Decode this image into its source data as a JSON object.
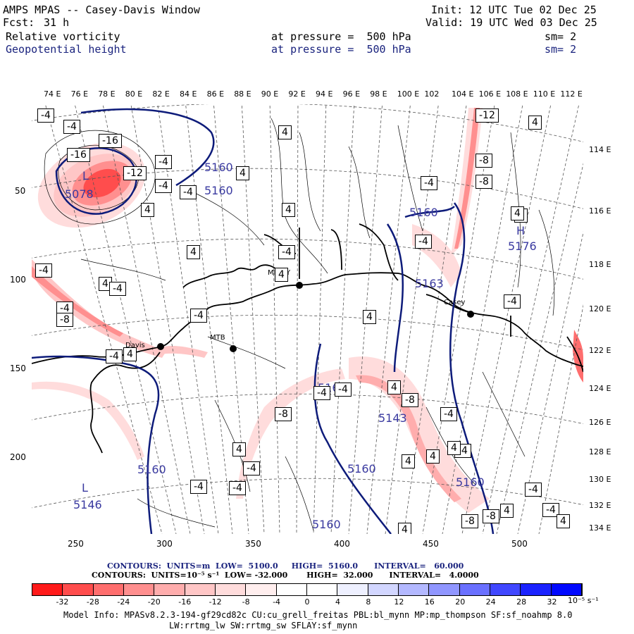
{
  "header": {
    "title": "AMPS MPAS -- Casey-Davis Window",
    "fcst_label": "Fcst:",
    "fcst_value": "31 h",
    "init": "Init: 12 UTC Tue 02 Dec 25",
    "valid": "Valid: 19 UTC Wed 03 Dec 25",
    "field1_name": "Relative vorticity",
    "field1_level": "at pressure =  500 hPa",
    "field1_sm": "sm= 2",
    "field2_name": "Geopotential height",
    "field2_level": "at pressure =  500 hPa",
    "field2_sm": "sm= 2",
    "colors": {
      "text": "#000000",
      "field2": "#1a237e"
    }
  },
  "axes": {
    "top_lon": [
      "74 E",
      "76 E",
      "78 E",
      "80 E",
      "82 E",
      "84 E",
      "86 E",
      "88 E",
      "90 E",
      "92 E",
      "94 E",
      "96 E",
      "98 E",
      "100 E",
      "102",
      "104 E",
      "106 E",
      "108 E",
      "110 E",
      "112 E"
    ],
    "right_lon": [
      "114 E",
      "116 E",
      "118 E",
      "120 E",
      "122 E",
      "124 E",
      "126 E",
      "128 E",
      "130 E",
      "132 E",
      "134 E"
    ],
    "left_y": [
      "50",
      "100",
      "150",
      "200"
    ],
    "bottom_x": [
      "250",
      "300",
      "350",
      "400",
      "450",
      "500"
    ]
  },
  "map": {
    "stations": [
      {
        "name": "Davis",
        "marker": "dot"
      },
      {
        "name": "MTB",
        "marker": "dot"
      },
      {
        "name": "MIRNY",
        "marker": "dot"
      },
      {
        "name": "Casey",
        "marker": "dot"
      }
    ],
    "height_labels": [
      "5160",
      "5160",
      "5160",
      "5160",
      "5160",
      "5160",
      "5160",
      "5160",
      "5143",
      "5176",
      "5078",
      "5146",
      "5163"
    ],
    "centers": [
      {
        "symbol": "L",
        "value": "5078"
      },
      {
        "symbol": "H",
        "value": "5176"
      },
      {
        "symbol": "L",
        "value": "5146"
      }
    ],
    "vort_boxes": [
      "-4",
      "-4",
      "-16",
      "-16",
      "-12",
      "-4",
      "-4",
      "-4",
      "4",
      "4",
      "-4",
      "-4",
      "4",
      "-4",
      "-12",
      "4",
      "-8",
      "-8",
      "-4",
      "-4",
      "4",
      "-8",
      "4",
      "4",
      "-4",
      "-4",
      "4",
      "-4",
      "4",
      "4",
      "4",
      "-4",
      "-8",
      "4",
      "4",
      "-4",
      "-4",
      "-8",
      "4",
      "-4",
      "-4",
      "4",
      "-4",
      "-4",
      "4",
      "-4",
      "-8",
      "4",
      "-4",
      "4",
      "-8",
      "4",
      "-4",
      "4"
    ],
    "colors": {
      "height_contour": "#0d1b7a",
      "coast": "#000000",
      "grid": "#555555"
    }
  },
  "legend": {
    "line1": "CONTOURS:  UNITS=m  LOW=  5100.0     HIGH=  5160.0      INTERVAL=   60.000",
    "line2": "CONTOURS:  UNITS=10⁻⁵ s⁻¹  LOW= -32.000       HIGH=  32.000      INTERVAL=   4.0000",
    "colorbar_labels": [
      "-32",
      "-28",
      "-24",
      "-20",
      "-16",
      "-12",
      "-8",
      "-4",
      "0",
      "4",
      "8",
      "12",
      "16",
      "20",
      "24",
      "28",
      "32"
    ],
    "units": "10⁻⁵ s⁻¹",
    "colors": [
      "#ff1a1a",
      "#ff4d4d",
      "#ff6e6e",
      "#ff8f8f",
      "#ffadad",
      "#ffc6c6",
      "#ffdcdc",
      "#ffeeee",
      "#ffffff",
      "#ffffff",
      "#eef0ff",
      "#d2d6ff",
      "#b3b8ff",
      "#9096ff",
      "#6a70ff",
      "#4047ff",
      "#1a22ff",
      "#0008ff"
    ]
  },
  "footer": {
    "line1": "Model Info: MPASv8.2.3-194-gf29cd82c CU:cu_grell_freitas PBL:bl_mynn MP:mp_thompson SF:sf_noahmp 8.0",
    "line2": "LW:rrtmg_lw SW:rrtmg_sw SFLAY:sf_mynn"
  }
}
